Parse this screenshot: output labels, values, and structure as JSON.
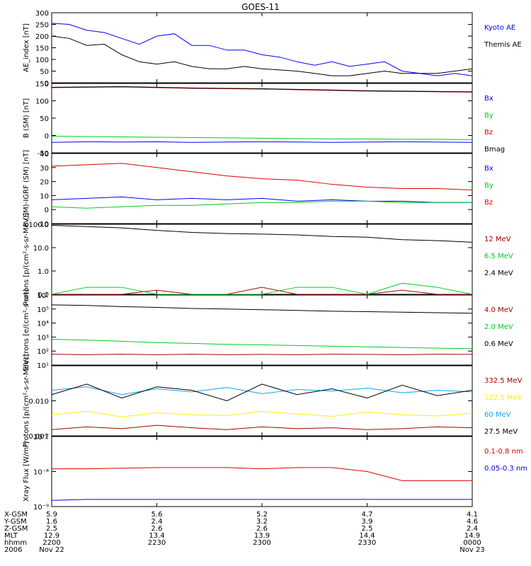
{
  "title": "GOES-11",
  "colors": {
    "black": "#000000",
    "blue": "#0000ff",
    "green": "#00cc22",
    "red": "#dd0000",
    "darkred": "#aa0000",
    "yellow": "#ffee00",
    "cyan": "#00aaff"
  },
  "chart_data": [
    {
      "type": "line",
      "ylabel": "AE_index [nT]",
      "ylim": [
        0,
        300
      ],
      "yticks": [
        0,
        50,
        100,
        150,
        200,
        250,
        300
      ],
      "ytick_labels": [
        "0",
        "50",
        "100",
        "150",
        "200",
        "250",
        "300"
      ],
      "x": [
        0,
        5,
        10,
        15,
        20,
        25,
        30,
        35,
        40,
        45,
        50,
        55,
        60,
        65,
        70,
        75,
        80,
        85,
        90,
        95,
        100,
        105,
        110,
        115,
        120
      ],
      "series": [
        {
          "name": "Kyoto AE",
          "color": "blue",
          "values": [
            255,
            250,
            225,
            215,
            190,
            165,
            200,
            210,
            160,
            160,
            140,
            140,
            120,
            110,
            90,
            75,
            90,
            70,
            80,
            90,
            50,
            40,
            30,
            40,
            30
          ]
        },
        {
          "name": "Themis AE",
          "color": "black",
          "values": [
            200,
            190,
            160,
            165,
            120,
            90,
            80,
            90,
            70,
            60,
            60,
            70,
            60,
            55,
            50,
            40,
            30,
            30,
            40,
            50,
            40,
            40,
            40,
            50,
            60
          ]
        }
      ]
    },
    {
      "type": "line",
      "ylabel": "B (SM) [nT]",
      "ylim": [
        -50,
        150
      ],
      "yticks": [
        -50,
        0,
        50,
        100,
        150
      ],
      "ytick_labels": [
        "-50",
        "0",
        "50",
        "100",
        "150"
      ],
      "x": [
        0,
        10,
        20,
        30,
        40,
        50,
        60,
        70,
        80,
        90,
        100,
        110,
        120
      ],
      "series": [
        {
          "name": "Bx",
          "color": "blue",
          "values": [
            -20,
            -18,
            -19,
            -18,
            -20,
            -19,
            -18,
            -19,
            -20,
            -19,
            -18,
            -19,
            -20
          ]
        },
        {
          "name": "By",
          "color": "green",
          "values": [
            -2,
            -3,
            -4,
            -5,
            -6,
            -7,
            -8,
            -9,
            -10,
            -10,
            -11,
            -11,
            -12
          ]
        },
        {
          "name": "Bz",
          "color": "red",
          "values": [
            138,
            139,
            140,
            138,
            136,
            135,
            134,
            132,
            130,
            128,
            127,
            126,
            125
          ]
        },
        {
          "name": "Bmag",
          "color": "black",
          "values": [
            139,
            140,
            141,
            139,
            137,
            136,
            135,
            133,
            131,
            129,
            128,
            127,
            126
          ]
        }
      ]
    },
    {
      "type": "line",
      "ylabel": "B (SM)-IGRF (SM) [nT]",
      "ylim": [
        -10,
        40
      ],
      "yticks": [
        -10,
        0,
        10,
        20,
        30,
        40
      ],
      "ytick_labels": [
        "-10",
        "0",
        "10",
        "20",
        "30",
        "40"
      ],
      "x": [
        0,
        10,
        20,
        30,
        40,
        50,
        60,
        70,
        80,
        90,
        100,
        110,
        120
      ],
      "series": [
        {
          "name": "Bx",
          "color": "blue",
          "values": [
            7,
            8,
            9,
            7,
            8,
            7,
            8,
            6,
            7,
            6,
            6,
            5,
            5
          ]
        },
        {
          "name": "By",
          "color": "green",
          "values": [
            2,
            1,
            2,
            3,
            3,
            4,
            5,
            5,
            6,
            6,
            5,
            5,
            5
          ]
        },
        {
          "name": "Bz",
          "color": "red",
          "values": [
            31,
            32,
            33,
            30,
            27,
            24,
            22,
            21,
            18,
            16,
            15,
            15,
            14
          ]
        }
      ]
    },
    {
      "type": "line",
      "ylabel": "Protons [p/(cm²-s-sr-MeV)]",
      "log": true,
      "ylim": [
        0.1,
        100
      ],
      "yticks": [
        0.1,
        1,
        10,
        100
      ],
      "ytick_labels": [
        "0.1",
        "1.0",
        "10.0",
        "100.0"
      ],
      "x": [
        0,
        10,
        20,
        30,
        40,
        50,
        60,
        70,
        80,
        90,
        100,
        110,
        120
      ],
      "series": [
        {
          "name": "12 MeV",
          "color": "darkred",
          "values": [
            0.1,
            0.1,
            0.1,
            0.15,
            0.1,
            0.1,
            0.2,
            0.1,
            0.1,
            0.1,
            0.15,
            0.1,
            0.1
          ]
        },
        {
          "name": "6.5 MeV",
          "color": "green",
          "values": [
            0.1,
            0.2,
            0.2,
            0.1,
            0.1,
            0.1,
            0.1,
            0.2,
            0.2,
            0.1,
            0.3,
            0.2,
            0.1
          ]
        },
        {
          "name": "2.4 MeV",
          "color": "black",
          "values": [
            90,
            80,
            70,
            55,
            45,
            40,
            38,
            35,
            30,
            28,
            22,
            20,
            17
          ]
        }
      ]
    },
    {
      "type": "line",
      "ylabel": "Electrons [e/(cm²-s-sr)]",
      "log": true,
      "ylim": [
        10,
        1000000
      ],
      "yticks": [
        10,
        100,
        1000,
        10000,
        100000,
        1000000
      ],
      "ytick_labels": [
        "10¹",
        "10²",
        "10³",
        "10⁴",
        "10⁵",
        "10⁶"
      ],
      "x": [
        0,
        10,
        20,
        30,
        40,
        50,
        60,
        70,
        80,
        90,
        100,
        110,
        120
      ],
      "series": [
        {
          "name": "4.0 MeV",
          "color": "darkred",
          "values": [
            60,
            55,
            60,
            55,
            60,
            55,
            58,
            55,
            60,
            58,
            55,
            60,
            58
          ]
        },
        {
          "name": "2.0 MeV",
          "color": "green",
          "values": [
            700,
            600,
            500,
            400,
            350,
            300,
            280,
            250,
            220,
            200,
            180,
            160,
            150
          ]
        },
        {
          "name": "0.6 MeV",
          "color": "black",
          "values": [
            200000,
            180000,
            150000,
            130000,
            110000,
            100000,
            90000,
            80000,
            70000,
            65000,
            60000,
            55000,
            50000
          ]
        }
      ]
    },
    {
      "type": "line",
      "ylabel": "Protons [p/(cm²-s-sr-MeV)]",
      "log": true,
      "ylim": [
        0.001,
        0.1
      ],
      "yticks": [
        0.001,
        0.01
      ],
      "ytick_labels": [
        "0.001",
        "0.010"
      ],
      "x": [
        0,
        10,
        20,
        30,
        40,
        50,
        60,
        70,
        80,
        90,
        100,
        110,
        120
      ],
      "series": [
        {
          "name": "332.5 MeV",
          "color": "darkred",
          "values": [
            0.0015,
            0.0018,
            0.0016,
            0.002,
            0.0017,
            0.0015,
            0.0018,
            0.0016,
            0.0017,
            0.0015,
            0.0016,
            0.0018,
            0.0017
          ]
        },
        {
          "name": "122.5 MeV",
          "color": "yellow",
          "values": [
            0.004,
            0.005,
            0.0035,
            0.0045,
            0.004,
            0.0038,
            0.005,
            0.0042,
            0.0036,
            0.0048,
            0.004,
            0.0037,
            0.0044
          ]
        },
        {
          "name": "60 MeV",
          "color": "cyan",
          "values": [
            0.02,
            0.025,
            0.015,
            0.022,
            0.018,
            0.024,
            0.016,
            0.021,
            0.019,
            0.023,
            0.017,
            0.02,
            0.018
          ]
        },
        {
          "name": "27.5 MeV",
          "color": "black",
          "values": [
            0.015,
            0.03,
            0.012,
            0.025,
            0.02,
            0.01,
            0.03,
            0.015,
            0.022,
            0.012,
            0.028,
            0.014,
            0.02
          ]
        }
      ]
    },
    {
      "type": "line",
      "ylabel": "Xray Flux [W/m²]",
      "log": true,
      "ylim": [
        1e-09,
        1e-07
      ],
      "yticks": [
        1e-09,
        1e-08,
        1e-07
      ],
      "ytick_labels": [
        "10⁻⁹",
        "10⁻⁸",
        "10⁻⁷"
      ],
      "x": [
        0,
        10,
        20,
        30,
        40,
        50,
        60,
        70,
        80,
        90,
        100,
        110,
        120
      ],
      "series": [
        {
          "name": "0.1-0.8 nm",
          "color": "red",
          "values": [
            1.2e-08,
            1.2e-08,
            1.25e-08,
            1.3e-08,
            1.3e-08,
            1.3e-08,
            1.2e-08,
            1.3e-08,
            1.3e-08,
            1e-08,
            5.5e-09,
            5.5e-09,
            5.5e-09
          ]
        },
        {
          "name": "0.05-0.3 nm",
          "color": "blue",
          "values": [
            1.5e-09,
            1.6e-09,
            1.6e-09,
            1.6e-09,
            1.6e-09,
            1.6e-09,
            1.6e-09,
            1.6e-09,
            1.6e-09,
            1.6e-09,
            1.6e-09,
            1.6e-09,
            1.6e-09
          ]
        }
      ]
    }
  ],
  "orbit_table": {
    "rows": [
      {
        "label": "X-GSM",
        "values": [
          "5.9",
          "5.6",
          "5.2",
          "4.7",
          "4.1"
        ]
      },
      {
        "label": "Y-GSM",
        "values": [
          "1.6",
          "2.4",
          "3.2",
          "3.9",
          "4.6"
        ]
      },
      {
        "label": "Z-GSM",
        "values": [
          "2.5",
          "2.6",
          "2.6",
          "2.5",
          "2.4"
        ]
      },
      {
        "label": "MLT",
        "values": [
          "12.9",
          "13.4",
          "13.9",
          "14.4",
          "14.9"
        ]
      },
      {
        "label": "hhmm",
        "values": [
          "2200",
          "2230",
          "2300",
          "2330",
          "0000"
        ]
      },
      {
        "label": "2006",
        "values": [
          "Nov 22",
          "",
          "",
          "",
          "Nov 23"
        ]
      }
    ]
  }
}
